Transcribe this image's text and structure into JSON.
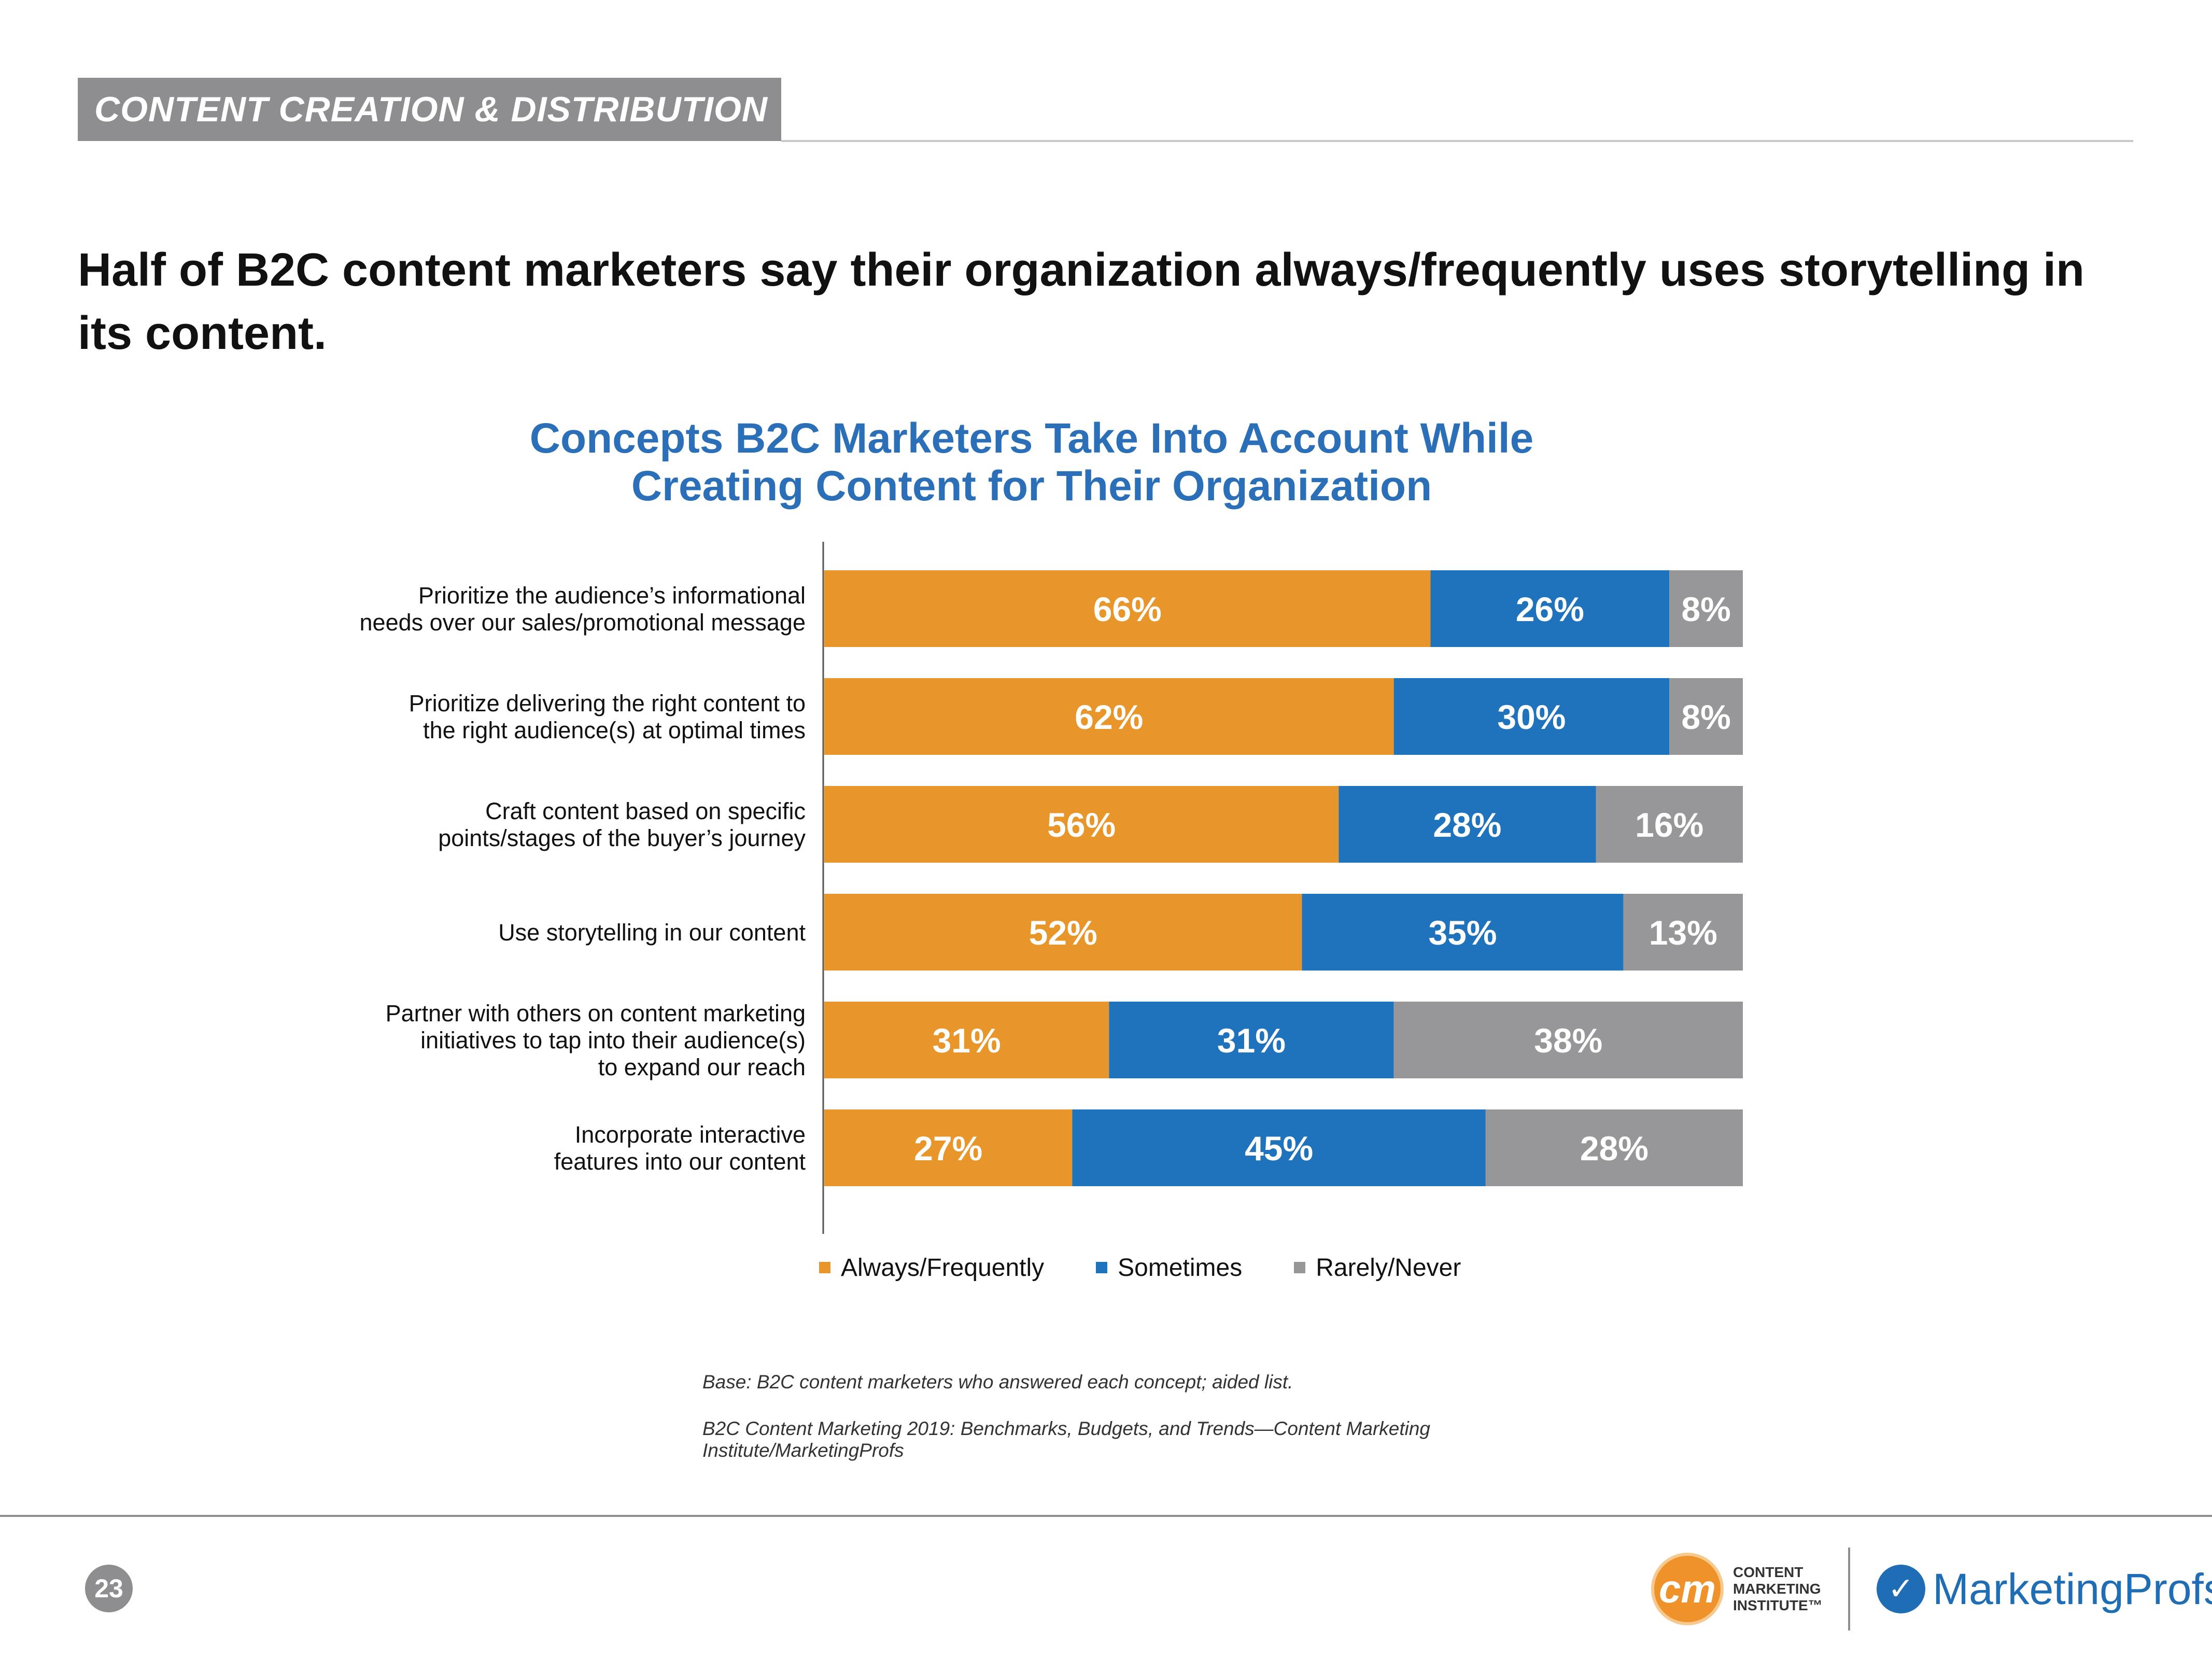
{
  "header": {
    "section": "CONTENT CREATION & DISTRIBUTION"
  },
  "headline": "Half of B2C content marketers say their organization always/frequently uses storytelling in its content.",
  "chart_title": {
    "line1": "Concepts B2C Marketers Take Into Account While",
    "line2": "Creating Content for Their Organization"
  },
  "chart_data": {
    "type": "bar",
    "orientation": "horizontal",
    "stacked": true,
    "title": "Concepts B2C Marketers Take Into Account While Creating Content for Their Organization",
    "xlabel": "",
    "ylabel": "",
    "xlim": [
      0,
      100
    ],
    "grid": false,
    "legend": "bottom",
    "categories": [
      [
        "Prioritize the audience’s informational",
        "needs over our sales/promotional message"
      ],
      [
        "Prioritize delivering the right content to",
        "the right audience(s) at optimal times"
      ],
      [
        "Craft content based on specific",
        "points/stages of the buyer’s journey"
      ],
      [
        "Use storytelling in our content"
      ],
      [
        "Partner with others on content marketing",
        "initiatives to tap into their audience(s)",
        "to expand our reach"
      ],
      [
        "Incorporate interactive",
        "features into our content"
      ]
    ],
    "series": [
      {
        "name": "Always/Frequently",
        "color": "#e8952a",
        "values": [
          66,
          62,
          56,
          52,
          31,
          27
        ],
        "labels": [
          "66%",
          "62%",
          "56%",
          "52%",
          "31%",
          "27%"
        ]
      },
      {
        "name": "Sometimes",
        "color": "#1f73bd",
        "values": [
          26,
          30,
          28,
          35,
          31,
          45
        ],
        "labels": [
          "26%",
          "30%",
          "28%",
          "35%",
          "31%",
          "45%"
        ]
      },
      {
        "name": "Rarely/Never",
        "color": "#97979a",
        "values": [
          8,
          8,
          16,
          13,
          38,
          28
        ],
        "labels": [
          "8%",
          "8%",
          "16%",
          "13%",
          "38%",
          "28%"
        ]
      }
    ]
  },
  "notes": {
    "base": "Base: B2C content marketers who answered each concept; aided list.",
    "source": "B2C Content Marketing 2019: Benchmarks, Budgets, and Trends—Content Marketing Institute/MarketingProfs"
  },
  "footer": {
    "page_number": "23",
    "cmi_mark": "cm",
    "cmi_line1": "CONTENT",
    "cmi_line2": "MARKETING",
    "cmi_line3": "INSTITUTE™",
    "mp_name": "MarketingProfs"
  }
}
